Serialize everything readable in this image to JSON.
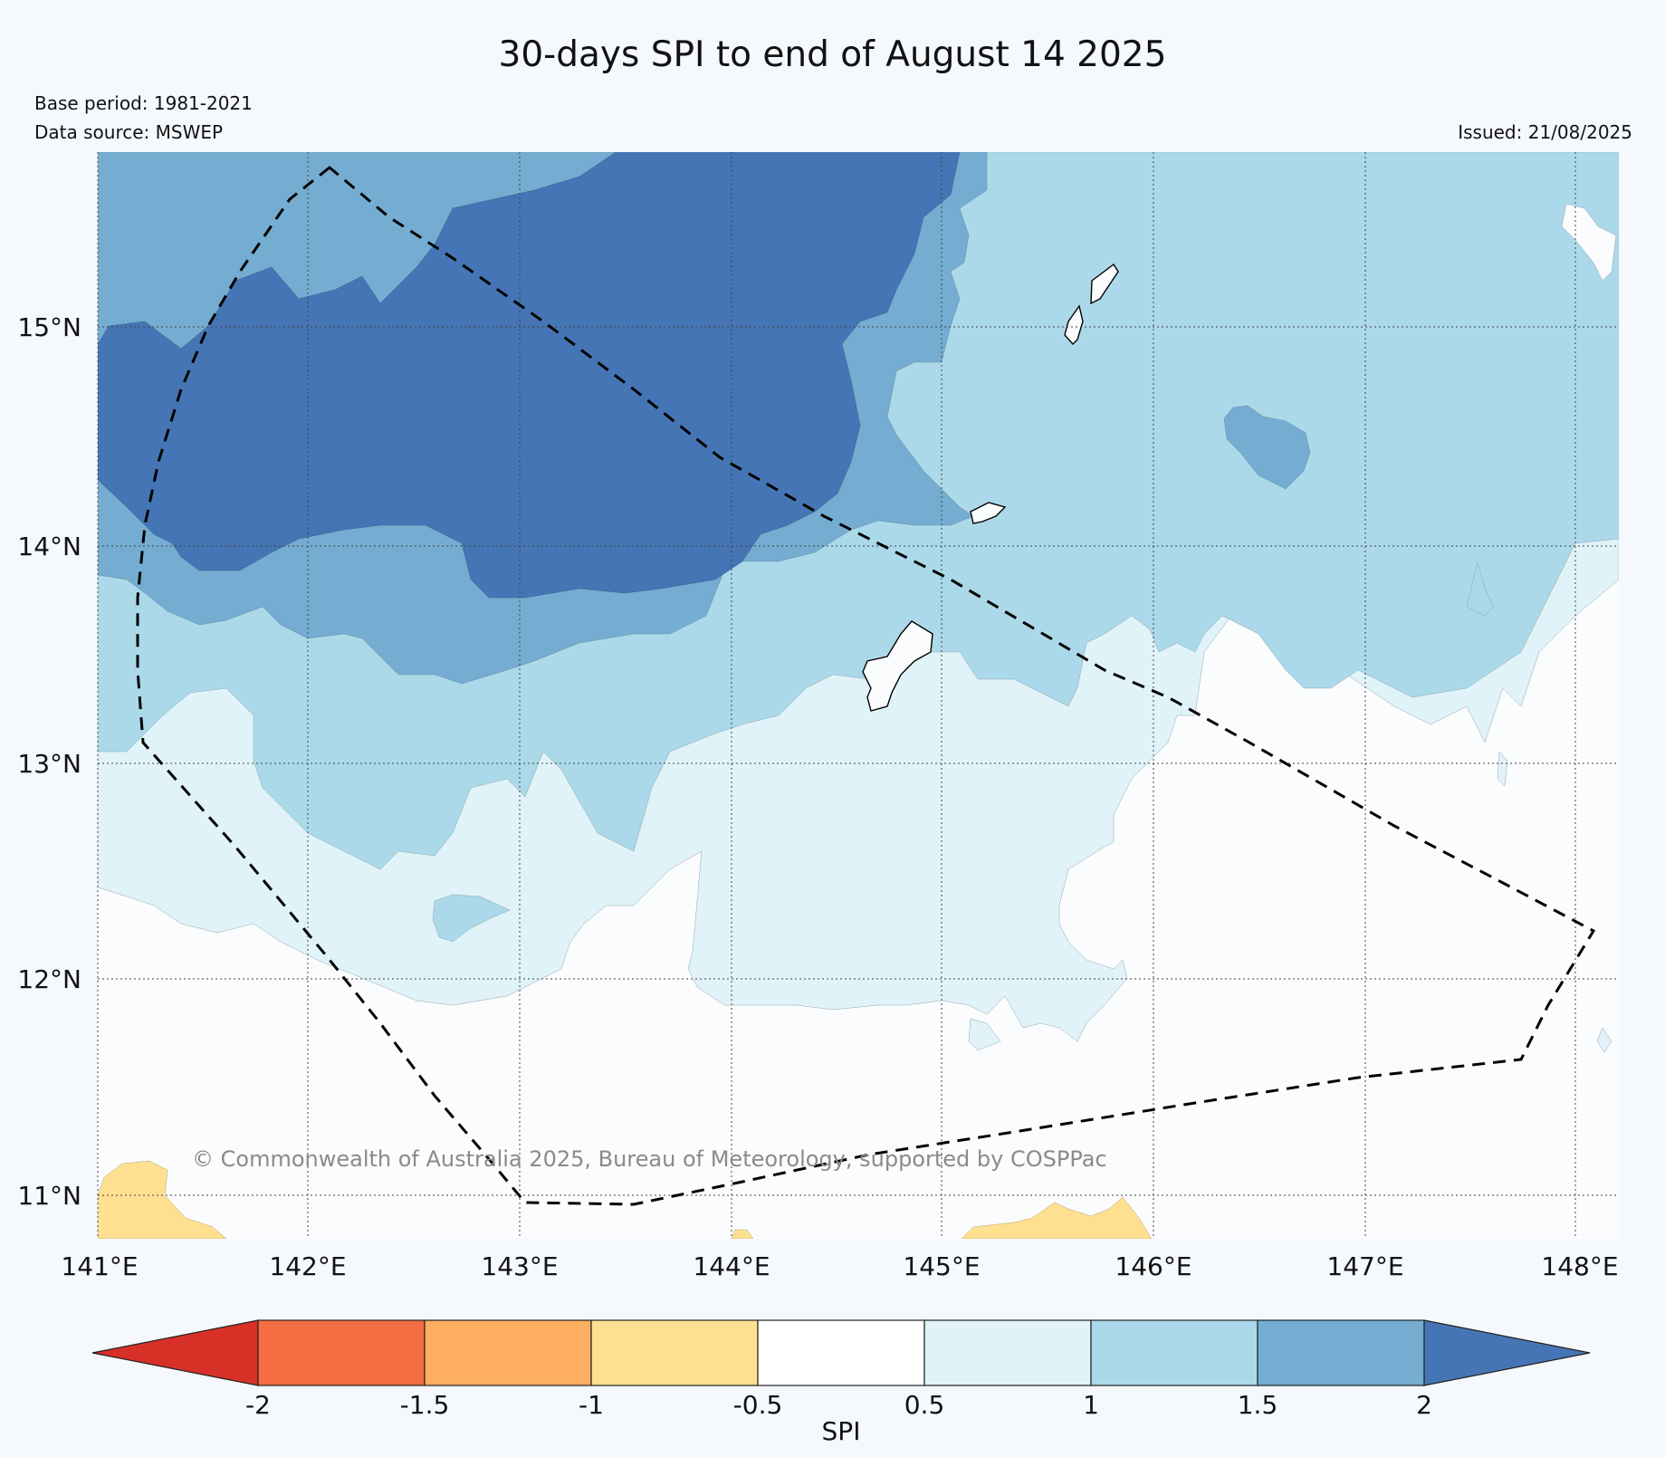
{
  "title": "30-days SPI to end of August 14 2025",
  "base_period": "Base period: 1981-2021",
  "data_source": "Data source: MSWEP",
  "issued": "Issued: 21/08/2025",
  "copyright": "© Commonwealth of Australia 2025, Bureau of Meteorology, supported by COSPPac",
  "x_ticks": [
    "141°E",
    "142°E",
    "143°E",
    "144°E",
    "145°E",
    "146°E",
    "147°E",
    "148°E"
  ],
  "y_ticks": [
    "15°N",
    "14°N",
    "13°N",
    "12°N",
    "11°N"
  ],
  "colorbar": {
    "label": "SPI",
    "ticks": [
      "-2",
      "-1.5",
      "-1",
      "-0.5",
      "0.5",
      "1",
      "1.5",
      "2"
    ],
    "colors": [
      "#d73027",
      "#f46d43",
      "#fdae61",
      "#fee090",
      "#ffffff",
      "#e0f3f8",
      "#abd9e9",
      "#74add1",
      "#4575b4"
    ]
  },
  "legend_colors": {
    "very_wet": "#4575b4",
    "wet": "#74add1",
    "moderately_wet": "#abd9e9",
    "slightly_wet": "#e0f3f8",
    "near_normal": "#fafcfe",
    "slightly_dry": "#fee090"
  }
}
